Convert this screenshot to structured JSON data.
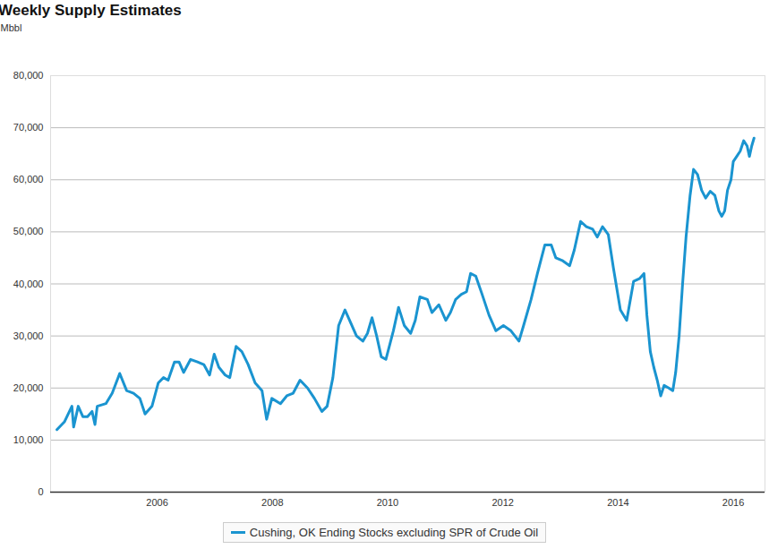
{
  "chart_data": {
    "type": "line",
    "title": "Weekly Supply Estimates",
    "y_label": "Mbbl",
    "x": [
      2004.26,
      2004.39,
      2004.52,
      2004.55,
      2004.63,
      2004.71,
      2004.79,
      2004.87,
      2004.92,
      2004.96,
      2005.11,
      2005.22,
      2005.35,
      2005.47,
      2005.59,
      2005.7,
      2005.79,
      2005.91,
      2006.02,
      2006.11,
      2006.19,
      2006.3,
      2006.38,
      2006.46,
      2006.58,
      2006.7,
      2006.81,
      2006.91,
      2006.99,
      2007.07,
      2007.18,
      2007.26,
      2007.37,
      2007.47,
      2007.58,
      2007.7,
      2007.82,
      2007.9,
      2007.99,
      2008.14,
      2008.25,
      2008.36,
      2008.48,
      2008.61,
      2008.73,
      2008.86,
      2008.95,
      2009.05,
      2009.15,
      2009.26,
      2009.34,
      2009.46,
      2009.57,
      2009.65,
      2009.73,
      2009.81,
      2009.89,
      2009.97,
      2010.1,
      2010.19,
      2010.29,
      2010.4,
      2010.48,
      2010.56,
      2010.69,
      2010.77,
      2010.89,
      2011.01,
      2011.09,
      2011.18,
      2011.28,
      2011.37,
      2011.44,
      2011.53,
      2011.64,
      2011.76,
      2011.88,
      2012.01,
      2012.14,
      2012.28,
      2012.36,
      2012.49,
      2012.6,
      2012.73,
      2012.84,
      2012.92,
      2013.03,
      2013.16,
      2013.24,
      2013.35,
      2013.45,
      2013.56,
      2013.64,
      2013.73,
      2013.83,
      2013.92,
      2014.04,
      2014.15,
      2014.27,
      2014.37,
      2014.45,
      2014.5,
      2014.56,
      2014.62,
      2014.68,
      2014.74,
      2014.8,
      2014.88,
      2014.95,
      2015.0,
      2015.06,
      2015.12,
      2015.18,
      2015.25,
      2015.31,
      2015.38,
      2015.45,
      2015.52,
      2015.6,
      2015.68,
      2015.75,
      2015.8,
      2015.85,
      2015.9,
      2015.96,
      2016.0,
      2016.06,
      2016.12,
      2016.18,
      2016.24,
      2016.28,
      2016.32,
      2016.36
    ],
    "series": [
      {
        "name": "Cushing, OK Ending Stocks excluding SPR of Crude Oil",
        "color": "#1a94d0",
        "values": [
          12000,
          13500,
          16500,
          12500,
          16500,
          14500,
          14500,
          15500,
          13000,
          16500,
          17000,
          19000,
          22800,
          19500,
          19000,
          18000,
          15000,
          16500,
          21000,
          22000,
          21500,
          25000,
          25000,
          23000,
          25500,
          25000,
          24500,
          22500,
          26500,
          24000,
          22500,
          22000,
          28000,
          27000,
          24500,
          21000,
          19500,
          14000,
          18000,
          17000,
          18500,
          19000,
          21500,
          20000,
          18000,
          15500,
          16500,
          22000,
          32000,
          35000,
          33000,
          30000,
          29000,
          30500,
          33500,
          30000,
          26000,
          25500,
          31000,
          35500,
          32000,
          30500,
          33000,
          37500,
          37000,
          34500,
          36000,
          33000,
          34500,
          37000,
          38000,
          38500,
          42000,
          41500,
          38000,
          34000,
          31000,
          32000,
          31000,
          29000,
          32000,
          37000,
          42000,
          47500,
          47500,
          45000,
          44500,
          43500,
          46500,
          52000,
          51000,
          50500,
          49000,
          51000,
          49500,
          43000,
          35000,
          33000,
          40500,
          41000,
          42000,
          34000,
          27000,
          24000,
          21500,
          18500,
          20500,
          20000,
          19500,
          23000,
          30000,
          40000,
          49000,
          57000,
          62000,
          61000,
          58000,
          56500,
          57800,
          57000,
          54000,
          53000,
          54000,
          58000,
          60000,
          63500,
          64500,
          65500,
          67500,
          66500,
          64500,
          66500,
          68000
        ]
      }
    ],
    "xlim": [
      2004.15,
      2016.55
    ],
    "xticks": [
      2006,
      2008,
      2010,
      2012,
      2014,
      2016
    ],
    "ylim": [
      0,
      80000
    ],
    "yticks": [
      0,
      {
        "value": 10000,
        "label": "10,000"
      },
      {
        "value": 20000,
        "label": "20,000"
      },
      {
        "value": 30000,
        "label": "30,000"
      },
      {
        "value": 40000,
        "label": "40,000"
      },
      {
        "value": 50000,
        "label": "50,000"
      },
      {
        "value": 60000,
        "label": "60,000"
      },
      {
        "value": 70000,
        "label": "70,000"
      },
      {
        "value": 80000,
        "label": "80,000"
      }
    ],
    "grid": true,
    "legend": "bottom"
  }
}
